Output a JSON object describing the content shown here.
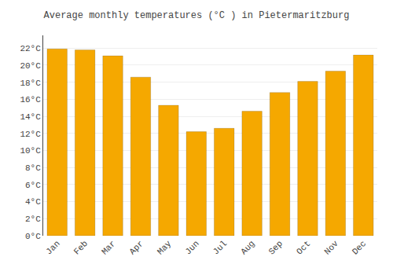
{
  "chart_data": {
    "type": "bar",
    "title": "Average monthly temperatures (°C ) in Pietermaritzburg",
    "categories": [
      "Jan",
      "Feb",
      "Mar",
      "Apr",
      "May",
      "Jun",
      "Jul",
      "Aug",
      "Sep",
      "Oct",
      "Nov",
      "Dec"
    ],
    "values": [
      21.9,
      21.8,
      21.1,
      18.6,
      15.3,
      12.2,
      12.6,
      14.6,
      16.8,
      18.1,
      19.3,
      21.2
    ],
    "color": "#F5A800",
    "ylim": [
      0,
      23.5
    ],
    "yticks": [
      {
        "value": 0,
        "label": "0°C"
      },
      {
        "value": 2,
        "label": "2°C"
      },
      {
        "value": 4,
        "label": "4°C"
      },
      {
        "value": 6,
        "label": "6°C"
      },
      {
        "value": 8,
        "label": "8°C"
      },
      {
        "value": 10,
        "label": "10°C"
      },
      {
        "value": 12,
        "label": "12°C"
      },
      {
        "value": 14,
        "label": "14°C"
      },
      {
        "value": 16,
        "label": "16°C"
      },
      {
        "value": 18,
        "label": "18°C"
      },
      {
        "value": 20,
        "label": "20°C"
      },
      {
        "value": 22,
        "label": "22°C"
      }
    ],
    "grid": true
  }
}
